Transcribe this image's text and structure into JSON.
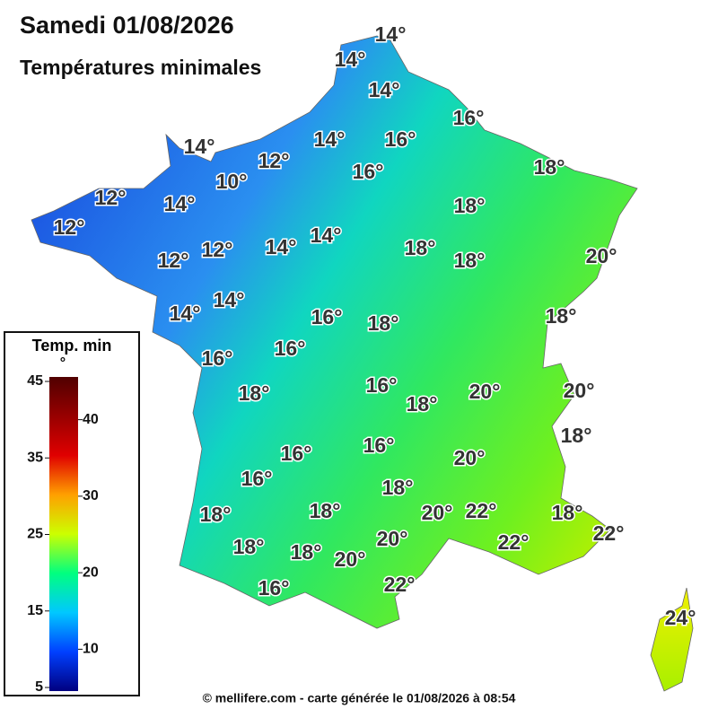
{
  "header": {
    "title": "Samedi 01/08/2026",
    "subtitle": "Températures minimales"
  },
  "map": {
    "labels": [
      "14°",
      "14°",
      "14°",
      "16°",
      "14°",
      "14°",
      "16°",
      "12°",
      "18°",
      "10°",
      "16°",
      "12°",
      "14°",
      "18°",
      "12°",
      "12°",
      "14°",
      "14°",
      "18°",
      "18°",
      "20°",
      "12°",
      "14°",
      "14°",
      "16°",
      "18°",
      "18°",
      "16°",
      "16°",
      "16°",
      "18°",
      "18°",
      "20°",
      "20°",
      "18°",
      "16°",
      "16°",
      "20°",
      "16°",
      "18°",
      "18°",
      "18°",
      "20°",
      "22°",
      "18°",
      "20°",
      "22°",
      "22°",
      "18°",
      "18°",
      "20°",
      "16°",
      "22°",
      "24°"
    ]
  },
  "legend": {
    "title": "Temp. min",
    "unit": "°",
    "range": [
      5,
      45
    ],
    "ticks": [
      45,
      40,
      35,
      30,
      25,
      20,
      15,
      10,
      5
    ]
  },
  "footer": {
    "text": "© mellifere.com - carte générée le 01/08/2026 à 08:54"
  }
}
